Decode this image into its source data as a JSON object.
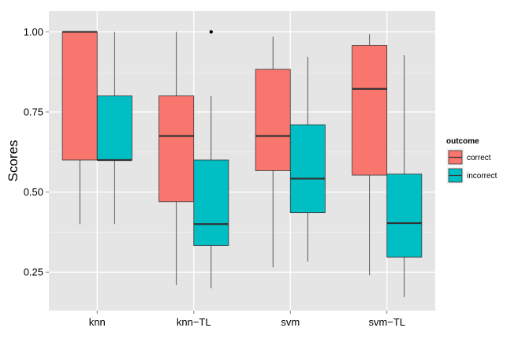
{
  "chart_data": {
    "type": "boxplot",
    "title": "",
    "xlabel": "",
    "ylabel": "Scores",
    "ylim": [
      0.13,
      1.065
    ],
    "y_ticks": [
      0.25,
      0.5,
      0.75,
      1.0
    ],
    "y_tick_labels": [
      "0.25",
      "0.50",
      "0.75",
      "1.00"
    ],
    "categories": [
      "knn",
      "knn−TL",
      "svm",
      "svm−TL"
    ],
    "grid": true,
    "legend": {
      "title": "outcome",
      "position": "right"
    },
    "series": [
      {
        "name": "correct",
        "color": "#F8766D",
        "boxes": [
          {
            "category": "knn",
            "min": 0.4,
            "q1": 0.6,
            "median": 1.0,
            "q3": 1.0,
            "max": 1.0,
            "outliers": []
          },
          {
            "category": "knn−TL",
            "min": 0.21,
            "q1": 0.47,
            "median": 0.675,
            "q3": 0.8,
            "max": 1.0,
            "outliers": []
          },
          {
            "category": "svm",
            "min": 0.265,
            "q1": 0.567,
            "median": 0.675,
            "q3": 0.883,
            "max": 0.985,
            "outliers": []
          },
          {
            "category": "svm−TL",
            "min": 0.24,
            "q1": 0.553,
            "median": 0.822,
            "q3": 0.958,
            "max": 0.993,
            "outliers": []
          }
        ]
      },
      {
        "name": "incorrect",
        "color": "#00BFC4",
        "boxes": [
          {
            "category": "knn",
            "min": 0.4,
            "q1": 0.6,
            "median": 0.6,
            "q3": 0.8,
            "max": 1.0,
            "outliers": []
          },
          {
            "category": "knn−TL",
            "min": 0.2,
            "q1": 0.333,
            "median": 0.4,
            "q3": 0.6,
            "max": 0.8,
            "outliers": [
              1.0
            ]
          },
          {
            "category": "svm",
            "min": 0.283,
            "q1": 0.436,
            "median": 0.542,
            "q3": 0.71,
            "max": 0.922,
            "outliers": []
          },
          {
            "category": "svm−TL",
            "min": 0.172,
            "q1": 0.297,
            "median": 0.403,
            "q3": 0.556,
            "max": 0.927,
            "outliers": []
          }
        ]
      }
    ]
  }
}
